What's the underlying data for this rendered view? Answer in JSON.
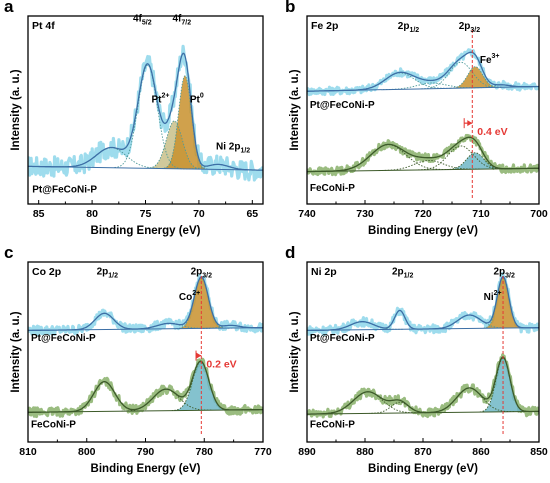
{
  "chart_data": [
    {
      "id": "a",
      "type": "line",
      "panel_label": "a",
      "title": "Pt 4f",
      "xlabel": "Binding Energy (eV)",
      "ylabel": "Intensity (a. u.)",
      "xlim": [
        86,
        64
      ],
      "xticks": [
        85,
        80,
        75,
        70,
        65
      ],
      "ylim": [
        0,
        1
      ],
      "annotations": [
        {
          "main": "4f",
          "sub": "5/2",
          "sup": "",
          "x": 75.3,
          "y": 0.97
        },
        {
          "main": "4f",
          "sub": "7/2",
          "sup": "",
          "x": 71.6,
          "y": 0.97
        },
        {
          "main": "Pt",
          "sub": "",
          "sup": "2+",
          "x": 73.6,
          "y": 0.54
        },
        {
          "main": "Pt",
          "sub": "",
          "sup": "0",
          "x": 70.2,
          "y": 0.54
        },
        {
          "main": "Ni 2p",
          "sub": "1/2",
          "sup": "",
          "x": 66.8,
          "y": 0.29
        }
      ],
      "series": [
        {
          "name": "Pt@FeCoNi-P",
          "label_x": 85.6,
          "label_y": 0.06,
          "offset": 0.18,
          "scale": 0.67,
          "baseline": [
            [
              86,
              0.03
            ],
            [
              64,
              0.0
            ]
          ],
          "peaks": [
            [
              78.2,
              0.16,
              1.4
            ],
            [
              74.8,
              0.82,
              0.9
            ],
            [
              72.3,
              0.38,
              0.75
            ],
            [
              71.3,
              0.74,
              0.6
            ],
            [
              68.2,
              0.04,
              1.0
            ]
          ],
          "fills": [
            [
              72.3,
              0.38,
              0.75,
              "#c8c08a"
            ],
            [
              71.3,
              0.74,
              0.6,
              "#c8912d"
            ]
          ]
        }
      ]
    },
    {
      "id": "b",
      "type": "line",
      "panel_label": "b",
      "title": "Fe 2p",
      "xlabel": "Binding Energy (eV)",
      "ylabel": "Intensity (a. u.)",
      "xlim": [
        740,
        700
      ],
      "xticks": [
        740,
        730,
        720,
        710,
        700
      ],
      "ylim": [
        0,
        1
      ],
      "annotations": [
        {
          "main": "2p",
          "sub": "1/2",
          "sup": "",
          "x": 722.5,
          "y": 0.93
        },
        {
          "main": "2p",
          "sub": "3/2",
          "sup": "",
          "x": 712.0,
          "y": 0.93
        },
        {
          "main": "Fe",
          "sub": "",
          "sup": "3+",
          "x": 708.5,
          "y": 0.75
        }
      ],
      "shift_text": "0.4 eV",
      "shift_x": [
        712.9,
        711.5
      ],
      "shift_y": 0.43,
      "ref_line_x": 711.5,
      "series": [
        {
          "name": "Pt@FeCoNi-P",
          "label_x": 739.5,
          "label_y": 0.51,
          "offset": 0.6,
          "scale": 0.25,
          "baseline": [
            [
              740,
              0.0
            ],
            [
              700,
              0.1
            ]
          ],
          "peaks": [
            [
              724,
              0.35,
              2.5
            ],
            [
              718.5,
              0.12,
              2.5
            ],
            [
              713.5,
              0.55,
              2.0
            ],
            [
              711.0,
              0.45,
              1.3
            ],
            [
              706.5,
              0.05,
              1.5
            ]
          ],
          "fills": [
            [
              711.0,
              0.45,
              1.3,
              "#c8912d"
            ]
          ]
        },
        {
          "name": "FeCoNi-P",
          "label_x": 739.5,
          "label_y": 0.07,
          "offset": 0.16,
          "scale": 0.25,
          "baseline": [
            [
              740,
              0.05
            ],
            [
              700,
              0.12
            ]
          ],
          "peaks": [
            [
              726,
              0.55,
              3.0
            ],
            [
              719,
              0.2,
              2.5
            ],
            [
              713.5,
              0.5,
              2.2
            ],
            [
              711.0,
              0.35,
              1.5
            ]
          ],
          "fills": [
            [
              711.0,
              0.35,
              1.5,
              "#6fb7c5"
            ]
          ]
        }
      ]
    },
    {
      "id": "c",
      "type": "line",
      "panel_label": "c",
      "title": "Co 2p",
      "xlabel": "Binding Energy (eV)",
      "ylabel": "Intensity (a. u.)",
      "xlim": [
        810,
        770
      ],
      "xticks": [
        810,
        800,
        790,
        780,
        770
      ],
      "ylim": [
        0,
        1
      ],
      "annotations": [
        {
          "main": "2p",
          "sub": "1/2",
          "sup": "",
          "x": 796.5,
          "y": 0.93
        },
        {
          "main": "2p",
          "sub": "3/2",
          "sup": "",
          "x": 780.5,
          "y": 0.93
        },
        {
          "main": "Co",
          "sub": "",
          "sup": "2+",
          "x": 782.5,
          "y": 0.79
        }
      ],
      "shift_text": "0.2 eV",
      "shift_x": [
        781.4,
        780.5
      ],
      "shift_y": 0.48,
      "ref_line_x": 780.5,
      "series": [
        {
          "name": "Pt@FeCoNi-P",
          "label_x": 809.5,
          "label_y": 0.56,
          "offset": 0.62,
          "scale": 0.3,
          "baseline": [
            [
              810,
              0.0
            ],
            [
              770,
              0.05
            ]
          ],
          "peaks": [
            [
              797.0,
              0.3,
              1.6
            ],
            [
              786.0,
              0.1,
              2.0
            ],
            [
              780.5,
              0.95,
              1.2
            ],
            [
              775.5,
              0.05,
              1.5
            ]
          ],
          "fills": [
            [
              780.5,
              0.95,
              1.2,
              "#c8912d"
            ]
          ]
        },
        {
          "name": "FeCoNi-P",
          "label_x": 809.5,
          "label_y": 0.08,
          "offset": 0.15,
          "scale": 0.3,
          "baseline": [
            [
              810,
              0.05
            ],
            [
              770,
              0.1
            ]
          ],
          "peaks": [
            [
              797.0,
              0.55,
              1.8
            ],
            [
              786.5,
              0.4,
              2.2
            ],
            [
              780.6,
              0.9,
              1.4
            ]
          ],
          "fills": [
            [
              780.6,
              0.9,
              1.4,
              "#6fb7c5"
            ]
          ]
        }
      ]
    },
    {
      "id": "d",
      "type": "line",
      "panel_label": "d",
      "title": "Ni 2p",
      "xlabel": "Binding Energy (eV)",
      "ylabel": "Intensity (a. u.)",
      "xlim": [
        890,
        850
      ],
      "xticks": [
        890,
        880,
        870,
        860,
        850
      ],
      "ylim": [
        0,
        1
      ],
      "annotations": [
        {
          "main": "2p",
          "sub": "1/2",
          "sup": "",
          "x": 873.5,
          "y": 0.93
        },
        {
          "main": "2p",
          "sub": "3/2",
          "sup": "",
          "x": 856.0,
          "y": 0.93
        },
        {
          "main": "Ni",
          "sub": "",
          "sup": "2+",
          "x": 858.0,
          "y": 0.79
        }
      ],
      "ref_line_x": 856.2,
      "series": [
        {
          "name": "Pt@FeCoNi-P",
          "label_x": 889.5,
          "label_y": 0.56,
          "offset": 0.62,
          "scale": 0.3,
          "baseline": [
            [
              890,
              0.0
            ],
            [
              850,
              0.05
            ]
          ],
          "peaks": [
            [
              880.5,
              0.15,
              2.0
            ],
            [
              874.0,
              0.35,
              0.9
            ],
            [
              862.0,
              0.25,
              2.0
            ],
            [
              856.2,
              0.95,
              1.0
            ]
          ],
          "fills": [
            [
              856.2,
              0.95,
              1.0,
              "#c8912d"
            ]
          ]
        },
        {
          "name": "FeCoNi-P",
          "label_x": 889.5,
          "label_y": 0.08,
          "offset": 0.14,
          "scale": 0.3,
          "baseline": [
            [
              890,
              0.05
            ],
            [
              850,
              0.1
            ]
          ],
          "peaks": [
            [
              879.5,
              0.4,
              2.5
            ],
            [
              874.0,
              0.2,
              1.5
            ],
            [
              862.0,
              0.45,
              2.2
            ],
            [
              856.2,
              1.0,
              1.2
            ]
          ],
          "fills": [
            [
              856.2,
              1.0,
              1.2,
              "#6fb7c5"
            ]
          ]
        }
      ]
    }
  ],
  "colors": {
    "raw": "#8dd6ea",
    "raw_dark": "#88b06a",
    "fit": "#3d6fa6",
    "fit_dark": "#3d5a2a",
    "component": "#4f9a9a",
    "shift": "#e53935",
    "ref_line": "#e53935"
  }
}
